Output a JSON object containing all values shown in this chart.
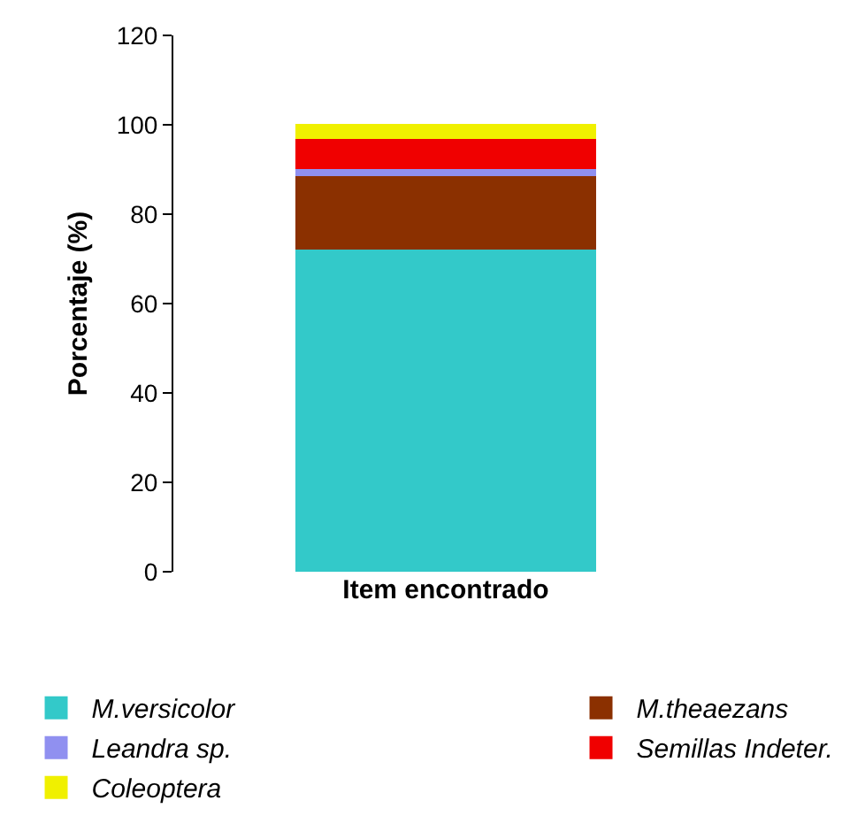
{
  "chart_data": {
    "type": "bar",
    "stacked": true,
    "categories": [
      null
    ],
    "xlabel": "Item encontrado",
    "ylabel": "Porcentaje (%)",
    "ylim": [
      0,
      120
    ],
    "yticks": [
      0,
      20,
      40,
      60,
      80,
      100,
      120
    ],
    "legend": "bottom",
    "series": [
      {
        "name": "M.versicolor",
        "color": "#33c9c9",
        "values": [
          72.3
        ]
      },
      {
        "name": "M.theaezans",
        "color": "#8b3000",
        "values": [
          16.5
        ]
      },
      {
        "name": "Leandra sp.",
        "color": "#9090f0",
        "values": [
          1.5
        ]
      },
      {
        "name": "Semillas Indeter.",
        "color": "#f00000",
        "values": [
          6.7
        ]
      },
      {
        "name": "Coleoptera",
        "color": "#f0f000",
        "values": [
          3.0
        ]
      }
    ]
  }
}
